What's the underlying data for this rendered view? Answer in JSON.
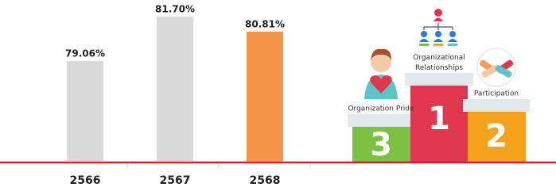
{
  "chart_data": {
    "type": "bar",
    "categories": [
      "2566",
      "2567",
      "2568"
    ],
    "values": [
      79.06,
      81.7,
      80.81
    ],
    "value_labels": [
      "79.06%",
      "81.70%",
      "80.81%"
    ],
    "colors": [
      "#d9d9d9",
      "#d9d9d9",
      "#f5954a"
    ],
    "ylim": [
      73.07,
      82.5
    ]
  },
  "podium": [
    {
      "rank": "3",
      "label": "Organization Pride"
    },
    {
      "rank": "1",
      "label": "Organizational Relationships"
    },
    {
      "rank": "2",
      "label": "Participation"
    }
  ]
}
